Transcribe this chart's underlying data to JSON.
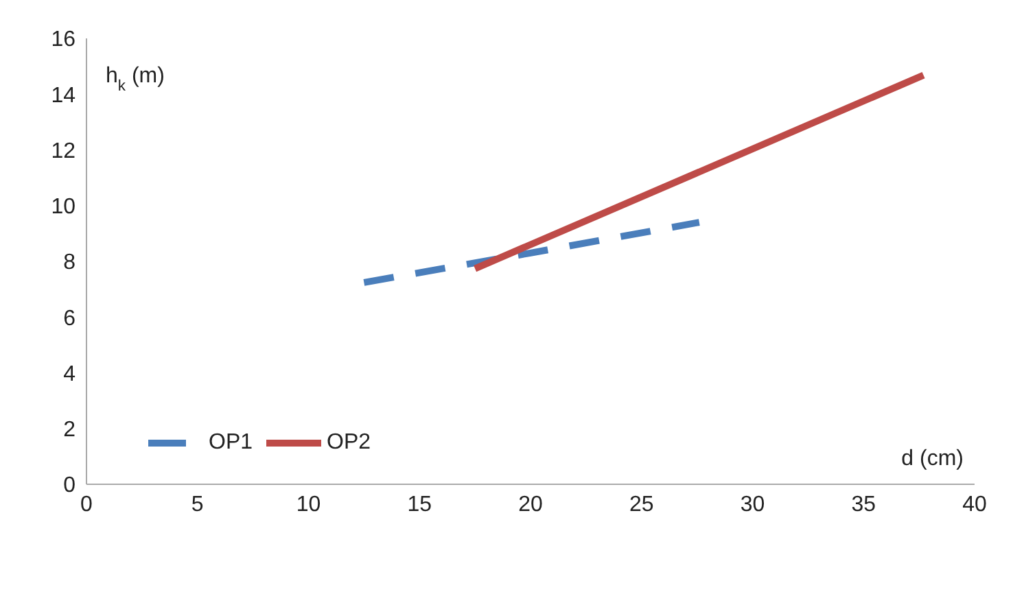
{
  "chart_data": {
    "type": "line",
    "xlabel": "d (cm)",
    "ylabel": "h$_{k}$ (m)",
    "xlim": [
      0,
      40
    ],
    "xticks": [
      0,
      5,
      10,
      15,
      20,
      25,
      30,
      35,
      40
    ],
    "ylim": [
      0,
      16
    ],
    "yticks": [
      0,
      2,
      4,
      6,
      8,
      10,
      12,
      14,
      16
    ],
    "grid": false,
    "legend": "bottom left",
    "marker": "none",
    "series": [
      {
        "name": "OP1",
        "color": "#4a7ebb",
        "line_style": "dashed",
        "x": [
          12.5,
          20,
          27.6
        ],
        "values": [
          7.24,
          8.3,
          9.4
        ]
      },
      {
        "name": "OP2",
        "color": "#be4b48",
        "line_style": "solid",
        "x": [
          17.5,
          37.7
        ],
        "values": [
          7.74,
          14.68
        ]
      }
    ]
  }
}
